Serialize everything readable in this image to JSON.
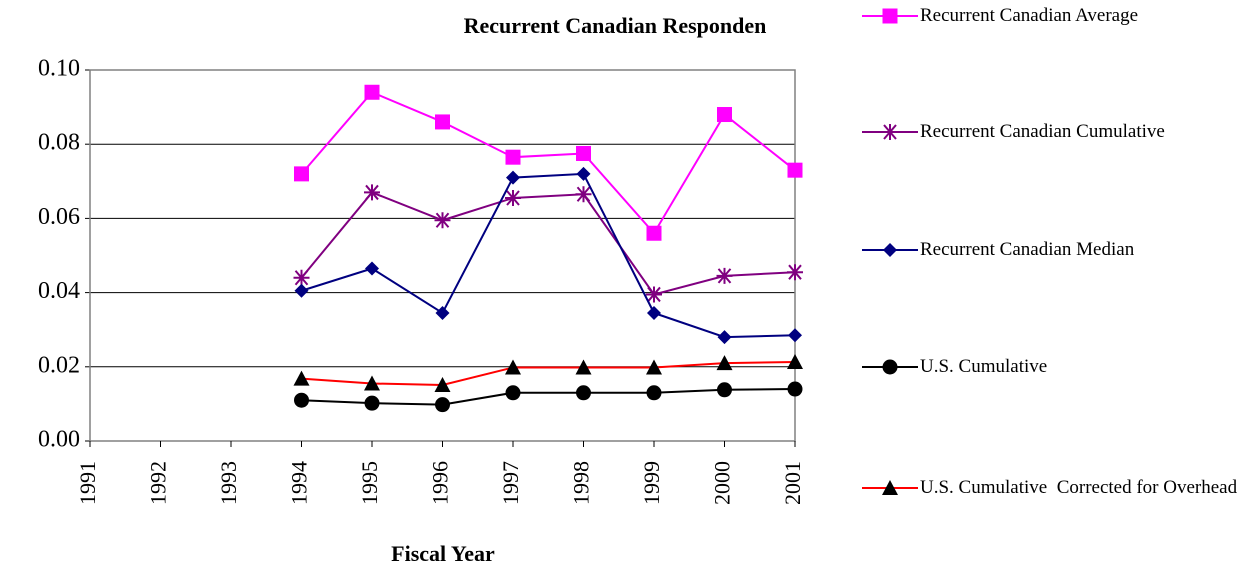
{
  "chart_data": {
    "type": "line",
    "title": "Recurrent Canadian Responden",
    "x_label": "Fiscal Year",
    "categories": [
      "1991",
      "1992",
      "1993",
      "1994",
      "1995",
      "1996",
      "1997",
      "1998",
      "1999",
      "2000",
      "2001"
    ],
    "ylim": [
      0,
      0.1
    ],
    "yticks": [
      {
        "value": 0,
        "label": "0.00"
      },
      0.02,
      0.04,
      0.06,
      0.08,
      {
        "value": 0.1,
        "label": "0.10"
      }
    ],
    "grid": true,
    "legend": "right",
    "series": [
      {
        "name": "Recurrent Canadian Average",
        "color": "#ff00ff",
        "marker": "square",
        "values": [
          null,
          null,
          null,
          0.072,
          0.094,
          0.086,
          0.0765,
          0.0775,
          0.056,
          0.088,
          0.073
        ]
      },
      {
        "name": "Recurrent Canadian Cumulative",
        "color": "#800080",
        "marker": "asterisk",
        "values": [
          null,
          null,
          null,
          0.044,
          0.067,
          0.0595,
          0.0655,
          0.0665,
          0.0395,
          0.0445,
          0.0455
        ]
      },
      {
        "name": "Recurrent Canadian Median",
        "color": "#000080",
        "marker": "diamond",
        "values": [
          null,
          null,
          null,
          0.0405,
          0.0465,
          0.0345,
          0.071,
          0.072,
          0.0345,
          0.028,
          0.0285
        ]
      },
      {
        "name": "U.S. Cumulative",
        "color": "#000000",
        "marker": "circle",
        "values": [
          null,
          null,
          null,
          0.011,
          0.0102,
          0.0098,
          0.013,
          0.013,
          0.013,
          0.0138,
          0.014
        ]
      },
      {
        "name": "U.S. Cumulative  Corrected for Overhead",
        "color": "#ff0000",
        "marker_color": "#000000",
        "marker": "triangle",
        "values": [
          null,
          null,
          null,
          0.0168,
          0.0155,
          0.0151,
          0.0198,
          0.0198,
          0.0198,
          0.021,
          0.0213
        ]
      }
    ]
  }
}
